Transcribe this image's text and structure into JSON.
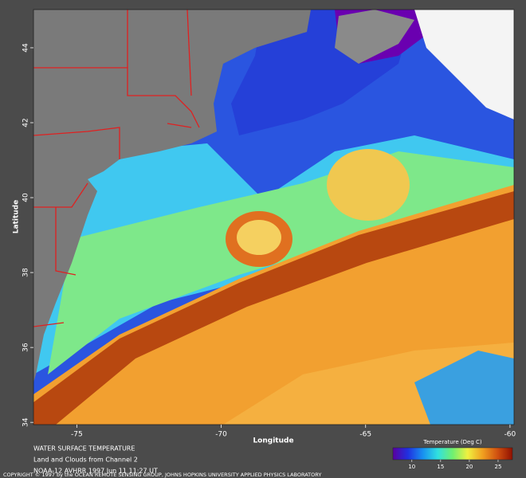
{
  "map": {
    "xlabel": "Longitude",
    "ylabel": "Latitude",
    "xlim": [
      -76.5,
      -59.86
    ],
    "xticks": [
      -75,
      -70,
      -65,
      -60
    ],
    "ylim": [
      33.94,
      45.02
    ],
    "yticks": [
      34,
      36,
      38,
      40,
      42,
      44
    ],
    "colorbar": {
      "label": "Temperature (Deg C)",
      "lim": [
        6.7,
        27.5
      ],
      "ticks": [
        10,
        15,
        20,
        25
      ],
      "colors": [
        "#5a00a0",
        "#2030e0",
        "#1890f0",
        "#30e0e0",
        "#70f070",
        "#f0f040",
        "#f0a020",
        "#d05010",
        "#901000"
      ]
    }
  },
  "caption": [
    "WATER SURFACE TEMPERATURE",
    "Land and Clouds from Channel 2",
    "NOAA-12 AVHRR 1997 Jun 11 11:27 UT"
  ],
  "copyright": "COPYRIGHT © 1997 by the OCEAN REMOTE SENSING GROUP, JOHNS HOPKINS UNIVERSITY APPLIED PHYSICS LABORATORY"
}
